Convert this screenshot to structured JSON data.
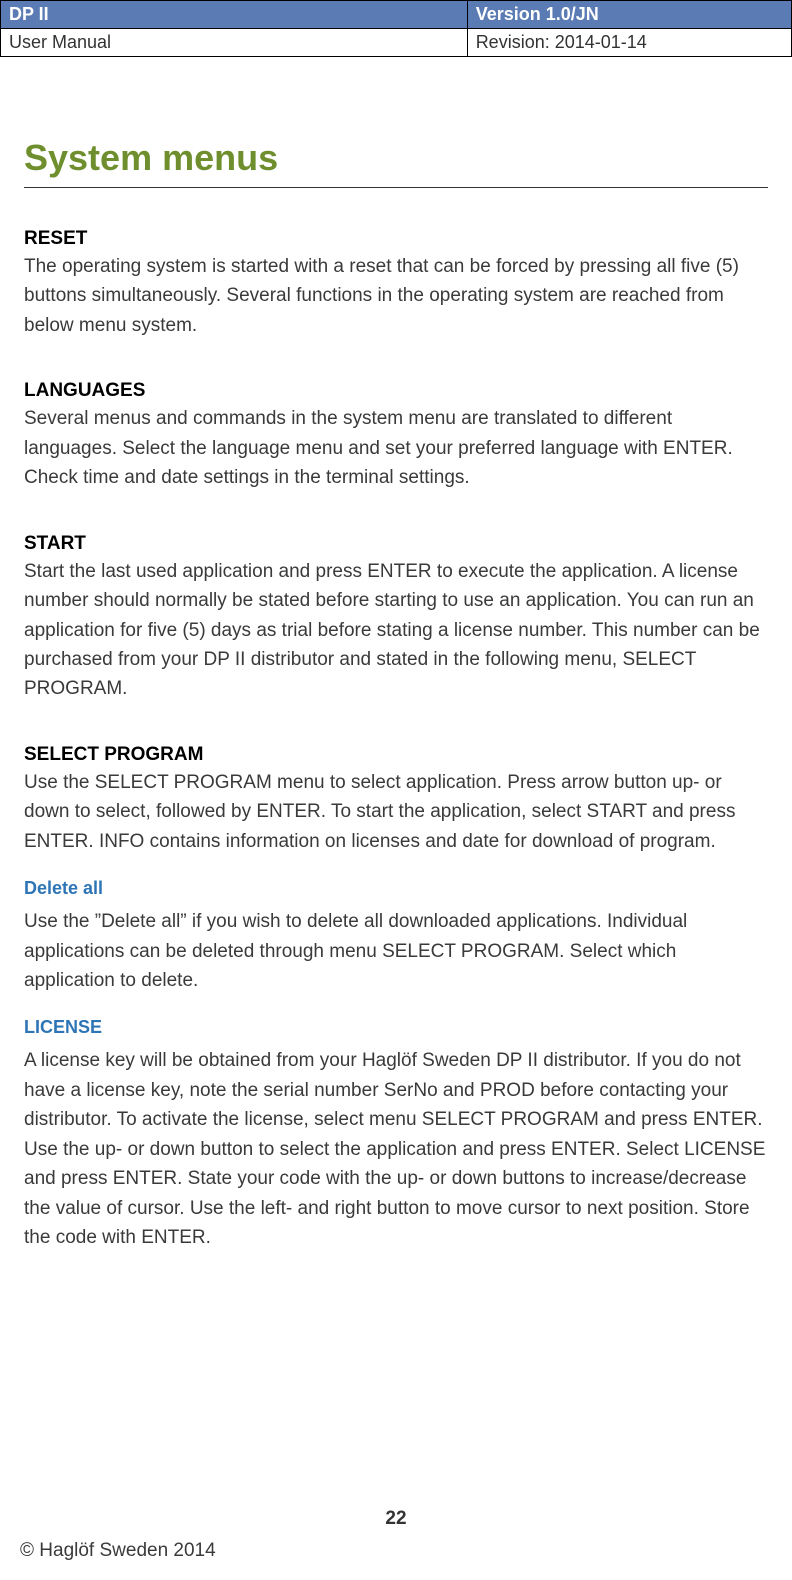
{
  "header": {
    "product": "DP II",
    "version": "Version 1.0/JN",
    "docType": "User Manual",
    "revision": "Revision: 2014-01-14"
  },
  "title": "System menus",
  "sections": [
    {
      "heading": "RESET",
      "body": "The operating system is started with a reset that can be forced by pressing all five (5) buttons simultaneously. Several functions in the operating system are reached from below menu system."
    },
    {
      "heading": "LANGUAGES",
      "body": "Several menus and commands in the system menu are translated to different languages. Select the language menu and set your preferred language with ENTER. Check time and date settings in the terminal settings."
    },
    {
      "heading": "START",
      "body": "Start the last used application and press ENTER to execute the application. A license number should normally be stated before starting to use an application. You can run an application for five (5) days as trial before stating a license number. This number can be purchased from your DP II distributor and stated in the following menu, SELECT PROGRAM."
    },
    {
      "heading": "SELECT PROGRAM",
      "body": "Use the SELECT PROGRAM menu to select application. Press arrow button up- or down to select, followed by ENTER. To start the application, select START and press ENTER. INFO contains information on licenses and date for download of program."
    }
  ],
  "subsections": [
    {
      "heading": "Delete all",
      "body": "Use the ”Delete all” if you wish to delete all downloaded applications. Individual applications can be deleted through menu SELECT PROGRAM. Select which application to delete."
    },
    {
      "heading": "LICENSE",
      "body": "A license key will be obtained from your Haglöf Sweden DP II distributor. If you do not have a license key, note the serial number SerNo and PROD before contacting your distributor. To activate the license, select menu SELECT PROGRAM and press ENTER. Use the up- or down button to select the application and press ENTER. Select LICENSE and press ENTER. State your code with the up- or down buttons to increase/decrease the value of cursor. Use the left- and right button to move cursor to next position. Store the code with ENTER."
    }
  ],
  "pageNumber": "22",
  "copyright": "© Haglöf Sweden 2014",
  "colors": {
    "headerBg": "#5b7bb4",
    "titleColor": "#6f8f2e",
    "subsectionColor": "#2e75b6",
    "textColor": "#333333"
  }
}
